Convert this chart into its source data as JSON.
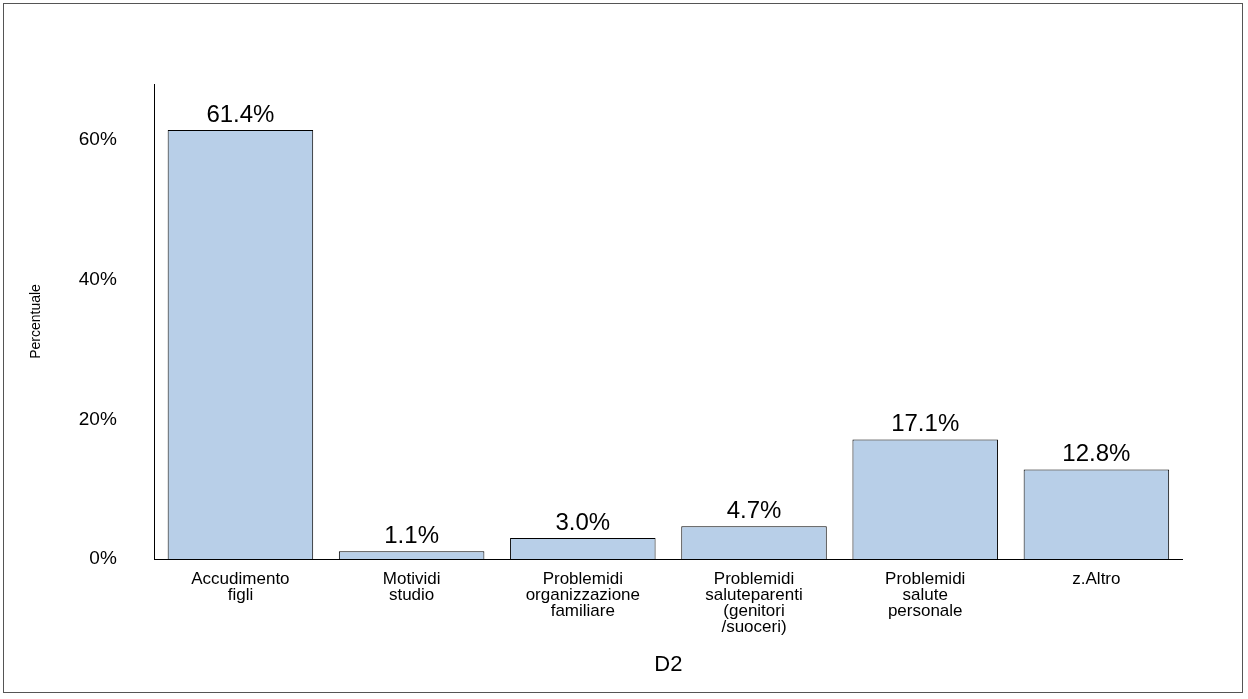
{
  "chart_data": {
    "type": "bar",
    "xlabel": "D2",
    "ylabel": "Percentuale",
    "categories": [
      "Accudimento\nfigli",
      "Motividi\nstudio",
      "Problemidi\norganizzazione\nfamiliare",
      "Problemidi\nsaluteparenti\n(genitori\n/suoceri)",
      "Problemidi\nsalute\npersonale",
      "z.Altro"
    ],
    "values": [
      61.4,
      1.1,
      3.0,
      4.7,
      17.1,
      12.8
    ],
    "value_labels": [
      "61.4%",
      "1.1%",
      "3.0%",
      "4.7%",
      "17.1%",
      "12.8%"
    ],
    "color": "#b8cfe8",
    "ylim": [
      0,
      68
    ],
    "yticks": [
      {
        "value": 0,
        "label": "0%"
      },
      {
        "value": 20,
        "label": "20%"
      },
      {
        "value": 40,
        "label": "40%"
      },
      {
        "value": 60,
        "label": "60%"
      }
    ],
    "grid": false,
    "legend": false
  }
}
